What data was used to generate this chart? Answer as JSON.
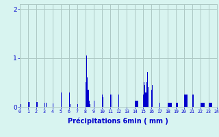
{
  "xlabel": "Précipitations 6min ( mm )",
  "background_color": "#d8f4f0",
  "bar_color": "#0000cc",
  "grid_color": "#adc8c4",
  "ylim": [
    0,
    2.1
  ],
  "yticks": [
    0,
    1,
    2
  ],
  "num_bars": 240,
  "values": [
    0,
    0.05,
    0,
    0,
    0,
    0,
    0,
    0,
    0,
    0,
    0.1,
    0,
    0.1,
    0,
    0,
    0,
    0,
    0,
    0,
    0,
    0.1,
    0.1,
    0,
    0,
    0,
    0,
    0,
    0,
    0,
    0,
    0.08,
    0,
    0.08,
    0,
    0,
    0,
    0,
    0,
    0,
    0,
    0.07,
    0,
    0,
    0,
    0,
    0,
    0,
    0,
    0,
    0,
    0.3,
    0,
    0,
    0,
    0,
    0,
    0,
    0,
    0,
    0,
    0.3,
    0.05,
    0,
    0,
    0,
    0,
    0,
    0,
    0,
    0,
    0.05,
    0,
    0,
    0,
    0,
    0,
    0,
    0,
    0,
    0,
    0.5,
    1.05,
    0.6,
    0.35,
    0.12,
    0.05,
    0,
    0,
    0,
    0,
    0.12,
    0,
    0,
    0,
    0,
    0,
    0,
    0,
    0,
    0,
    0.25,
    0.2,
    0,
    0,
    0,
    0,
    0,
    0,
    0,
    0,
    0.25,
    0,
    0.25,
    0,
    0,
    0,
    0,
    0,
    0,
    0,
    0.25,
    0,
    0,
    0,
    0,
    0,
    0,
    0,
    0,
    0,
    0,
    0,
    0,
    0,
    0,
    0,
    0,
    0,
    0,
    0,
    0.12,
    0.12,
    0.12,
    0.12,
    0,
    0,
    0,
    0,
    0,
    0,
    0.25,
    0.5,
    0.45,
    0.3,
    0.5,
    0.72,
    0.4,
    0,
    0,
    0,
    0.35,
    0.45,
    0,
    0,
    0,
    0,
    0,
    0,
    0,
    0,
    0.08,
    0,
    0,
    0,
    0,
    0,
    0,
    0,
    0,
    0,
    0.08,
    0.08,
    0.08,
    0.08,
    0.08,
    0,
    0,
    0,
    0,
    0,
    0.08,
    0.08,
    0.08,
    0,
    0,
    0,
    0,
    0,
    0,
    0,
    0.25,
    0.25,
    0.25,
    0.25,
    0,
    0,
    0,
    0,
    0,
    0,
    0.25,
    0.25,
    0,
    0,
    0,
    0,
    0,
    0,
    0,
    0,
    0.08,
    0.08,
    0.08,
    0.08,
    0.08,
    0,
    0,
    0,
    0,
    0,
    0.08,
    0.08,
    0.08,
    0.08,
    0,
    0,
    0,
    0,
    0,
    0
  ]
}
